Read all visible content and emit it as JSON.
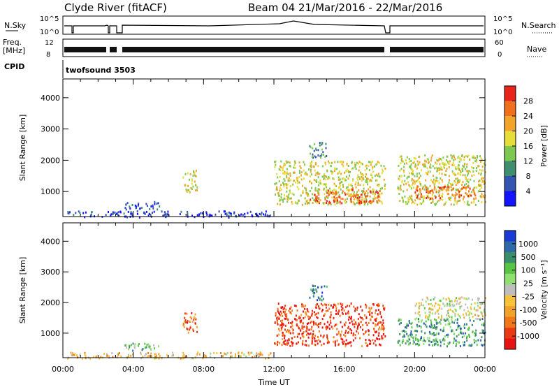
{
  "header": {
    "station": "Clyde River (fitACF)",
    "beam_info": "Beam 04  21/Mar/2016 - 22/Mar/2016"
  },
  "strips": {
    "nsky": {
      "left_label": "N.Sky",
      "left_ticks": [
        "10^5",
        "10^0"
      ],
      "right_ticks": [
        "10^5",
        "10^0"
      ],
      "right_label": "N.Search"
    },
    "freq": {
      "left_label_1": "Freq.",
      "left_label_2": "[MHz]",
      "left_ticks": [
        "12",
        "8"
      ],
      "right_ticks": [
        "60",
        "0"
      ],
      "right_label": "Nave"
    },
    "cpid": {
      "left_label": "CPID",
      "program": "twofsound 3503"
    }
  },
  "chart_data": [
    {
      "type": "heatmap",
      "name": "power",
      "xlabel": "",
      "ylabel": "Slant Range [km]",
      "x_range_hours": [
        0,
        24
      ],
      "ylim": [
        200,
        4600
      ],
      "yticks": [
        1000,
        2000,
        3000,
        4000
      ],
      "colorbar": {
        "label": "Power [dB]",
        "ticks": [
          "4",
          "8",
          "12",
          "16",
          "20",
          "24",
          "28"
        ],
        "colors": [
          "#1414ff",
          "#3553b0",
          "#3f8e6f",
          "#7dc850",
          "#e6dd38",
          "#f2a32a",
          "#f06e1c",
          "#e8251a"
        ]
      },
      "regions": [
        {
          "x": [
            0.2,
            11.8
          ],
          "y": [
            200,
            400
          ],
          "level": 0.12
        },
        {
          "x": [
            3.5,
            5.5
          ],
          "y": [
            450,
            700
          ],
          "level": 0.2
        },
        {
          "x": [
            6.8,
            7.6
          ],
          "y": [
            1000,
            1700
          ],
          "level": 0.55
        },
        {
          "x": [
            12.0,
            18.3
          ],
          "y": [
            600,
            2000
          ],
          "level": 0.55
        },
        {
          "x": [
            14.0,
            18.0
          ],
          "y": [
            650,
            1100
          ],
          "level": 0.85
        },
        {
          "x": [
            14.0,
            15.0
          ],
          "y": [
            2100,
            2600
          ],
          "level": 0.3
        },
        {
          "x": [
            19.0,
            24.0
          ],
          "y": [
            600,
            2200
          ],
          "level": 0.55
        },
        {
          "x": [
            20.0,
            23.5
          ],
          "y": [
            800,
            1200
          ],
          "level": 0.85
        }
      ]
    },
    {
      "type": "heatmap",
      "name": "velocity",
      "xlabel": "Time UT",
      "ylabel": "Slant Range [km]",
      "x_range_hours": [
        0,
        24
      ],
      "xticks": [
        "00:00",
        "04:00",
        "08:00",
        "12:00",
        "16:00",
        "20:00",
        "00:00"
      ],
      "ylim": [
        200,
        4600
      ],
      "yticks": [
        1000,
        2000,
        3000,
        4000
      ],
      "colorbar": {
        "label": "Velocity  [m s⁻¹]",
        "ticks": [
          "1000",
          "500",
          "100",
          "25",
          "-25",
          "-100",
          "-500",
          "-1000"
        ],
        "colors": [
          "#1a3ad6",
          "#2f6aa8",
          "#3b8e6a",
          "#58c445",
          "#8fe070",
          "#bebebe",
          "#f6c23a",
          "#f2a22a",
          "#f07818",
          "#ea3a14",
          "#e81212"
        ]
      },
      "regions": [
        {
          "x": [
            0.2,
            11.8
          ],
          "y": [
            200,
            400
          ],
          "level": 0.6
        },
        {
          "x": [
            3.5,
            5.5
          ],
          "y": [
            450,
            700
          ],
          "level": 0.3
        },
        {
          "x": [
            6.8,
            7.6
          ],
          "y": [
            1000,
            1700
          ],
          "level": 0.8
        },
        {
          "x": [
            12.0,
            18.3
          ],
          "y": [
            600,
            2000
          ],
          "level": 0.88
        },
        {
          "x": [
            14.0,
            15.0
          ],
          "y": [
            2100,
            2600
          ],
          "level": 0.2
        },
        {
          "x": [
            19.0,
            24.0
          ],
          "y": [
            600,
            1500
          ],
          "level": 0.25
        },
        {
          "x": [
            20.0,
            24.0
          ],
          "y": [
            1500,
            2200
          ],
          "level": 0.5
        }
      ]
    }
  ]
}
